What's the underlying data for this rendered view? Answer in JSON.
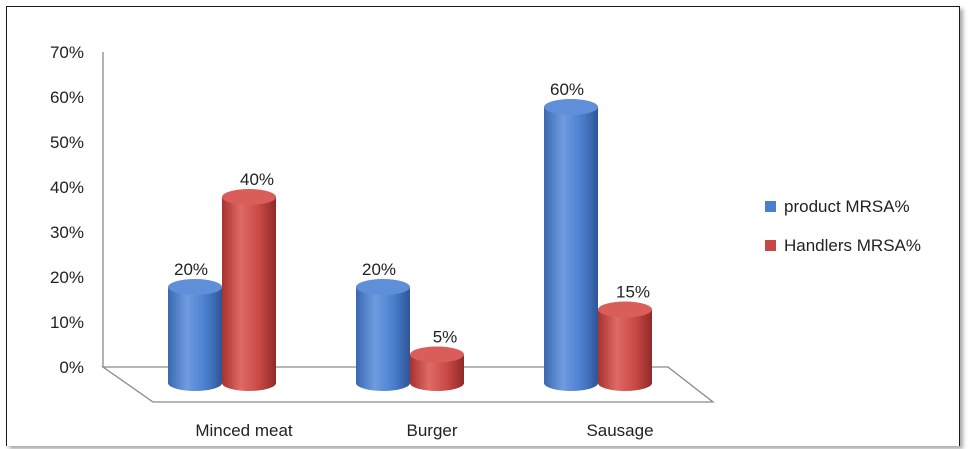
{
  "chart_data": {
    "type": "bar",
    "style": "3d-cylinder",
    "categories": [
      "Minced meat",
      "Burger",
      "Sausage"
    ],
    "series": [
      {
        "name": "product MRSA%",
        "values": [
          20,
          20,
          60
        ],
        "labels": [
          "20%",
          "20%",
          "60%"
        ],
        "color": "#4a7fcf"
      },
      {
        "name": "Handlers MRSA%",
        "values": [
          40,
          5,
          15
        ],
        "labels": [
          "40%",
          "5%",
          "15%"
        ],
        "color": "#c84744"
      }
    ],
    "yticks": [
      "0%",
      "10%",
      "20%",
      "30%",
      "40%",
      "50%",
      "60%",
      "70%"
    ],
    "ylim": [
      0,
      70
    ],
    "xlabel": "",
    "ylabel": "",
    "grid": false,
    "legend": "right"
  }
}
